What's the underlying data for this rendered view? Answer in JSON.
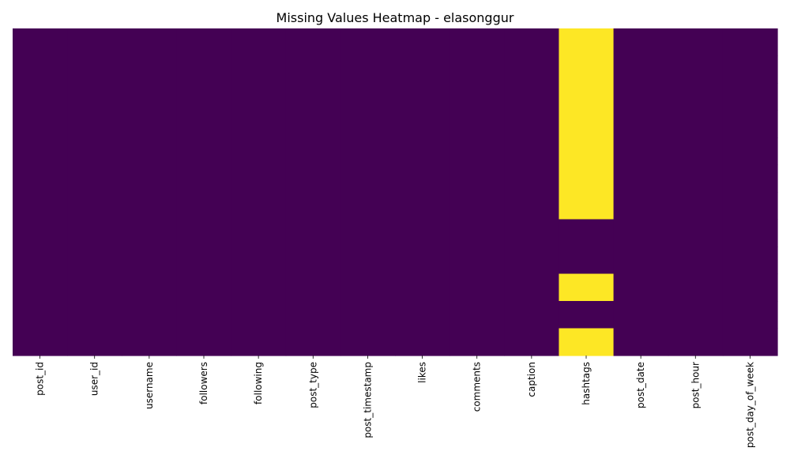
{
  "chart_data": {
    "type": "heatmap",
    "title": "Missing Values Heatmap - elasonggur",
    "xlabel": "",
    "ylabel": "",
    "columns": [
      "post_id",
      "user_id",
      "username",
      "followers",
      "following",
      "post_type",
      "post_timestamp",
      "likes",
      "comments",
      "caption",
      "hashtags",
      "post_date",
      "post_hour",
      "post_day_of_week"
    ],
    "rows": 12,
    "values": [
      [
        0,
        0,
        0,
        0,
        0,
        0,
        0,
        0,
        0,
        0,
        1,
        0,
        0,
        0
      ],
      [
        0,
        0,
        0,
        0,
        0,
        0,
        0,
        0,
        0,
        0,
        1,
        0,
        0,
        0
      ],
      [
        0,
        0,
        0,
        0,
        0,
        0,
        0,
        0,
        0,
        0,
        1,
        0,
        0,
        0
      ],
      [
        0,
        0,
        0,
        0,
        0,
        0,
        0,
        0,
        0,
        0,
        1,
        0,
        0,
        0
      ],
      [
        0,
        0,
        0,
        0,
        0,
        0,
        0,
        0,
        0,
        0,
        1,
        0,
        0,
        0
      ],
      [
        0,
        0,
        0,
        0,
        0,
        0,
        0,
        0,
        0,
        0,
        1,
        0,
        0,
        0
      ],
      [
        0,
        0,
        0,
        0,
        0,
        0,
        0,
        0,
        0,
        0,
        1,
        0,
        0,
        0
      ],
      [
        0,
        0,
        0,
        0,
        0,
        0,
        0,
        0,
        0,
        0,
        0,
        0,
        0,
        0
      ],
      [
        0,
        0,
        0,
        0,
        0,
        0,
        0,
        0,
        0,
        0,
        0,
        0,
        0,
        0
      ],
      [
        0,
        0,
        0,
        0,
        0,
        0,
        0,
        0,
        0,
        0,
        1,
        0,
        0,
        0
      ],
      [
        0,
        0,
        0,
        0,
        0,
        0,
        0,
        0,
        0,
        0,
        0,
        0,
        0,
        0
      ],
      [
        0,
        0,
        0,
        0,
        0,
        0,
        0,
        0,
        0,
        0,
        1,
        0,
        0,
        0
      ]
    ],
    "colors": {
      "present": "#440154",
      "missing": "#fde725"
    },
    "colorbar": false,
    "yticks": false,
    "grid": false
  }
}
